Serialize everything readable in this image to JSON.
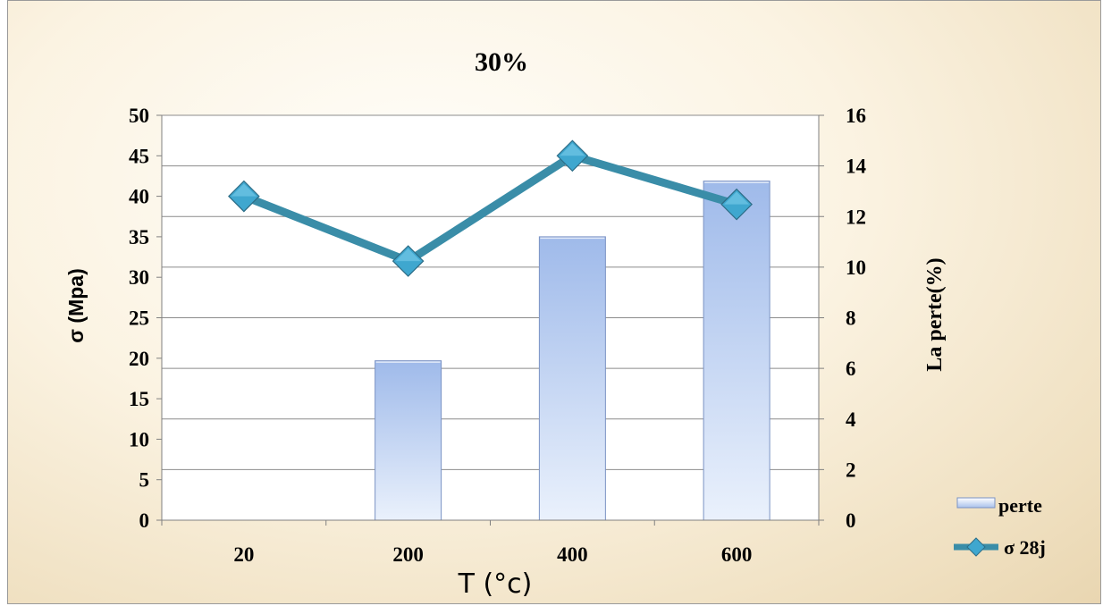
{
  "chart_data": {
    "type": "bar",
    "title": "30%",
    "xlabel": "T (°c)",
    "ylabel_left": "σ  (Mpa)",
    "ylabel_right": "La perte(%)",
    "categories": [
      "20",
      "200",
      "400",
      "600"
    ],
    "y_left": {
      "range": [
        0,
        50
      ],
      "ticks": [
        "0",
        "5",
        "10",
        "15",
        "20",
        "25",
        "30",
        "35",
        "40",
        "45",
        "50"
      ]
    },
    "y_right": {
      "range": [
        0,
        16
      ],
      "ticks": [
        "0",
        "2",
        "4",
        "6",
        "8",
        "10",
        "12",
        "14",
        "16"
      ]
    },
    "grid": true,
    "legend_position": "bottom-right",
    "series": [
      {
        "name": "perte",
        "type": "bar",
        "axis": "right",
        "values": [
          0,
          6.3,
          11.2,
          13.4
        ],
        "color": "#a9c1ec"
      },
      {
        "name": "σ 28j",
        "type": "line",
        "axis": "left",
        "values": [
          40,
          32,
          45,
          39
        ],
        "color": "#3a8da8",
        "marker": "diamond"
      }
    ]
  }
}
